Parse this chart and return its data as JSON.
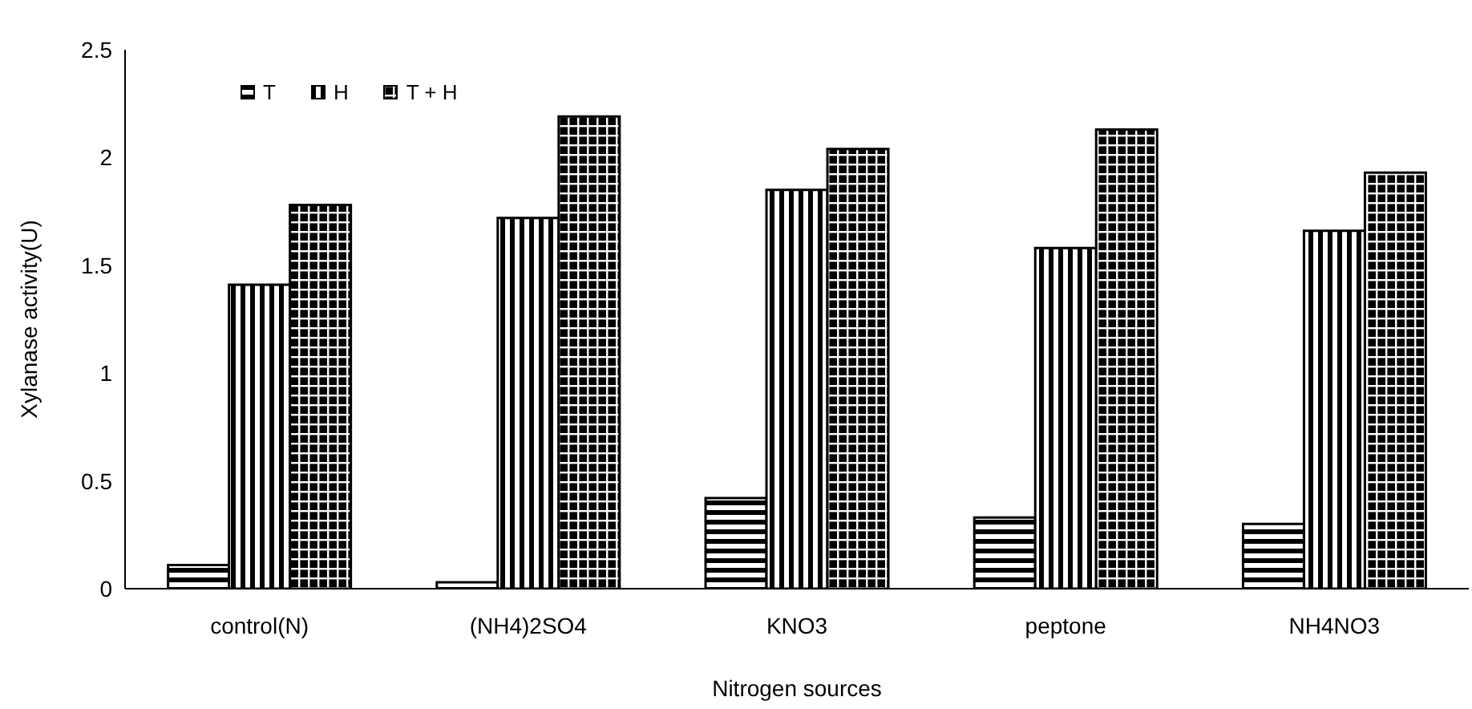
{
  "chart_data": {
    "type": "bar",
    "xlabel": "Nitrogen sources",
    "ylabel": "Xylanase activity(U)",
    "categories": [
      "control(N)",
      "(NH4)2SO4",
      "KNO3",
      "peptone",
      "NH4NO3"
    ],
    "series": [
      {
        "name": "T",
        "color": "#000000",
        "values": [
          0.11,
          0.03,
          0.42,
          0.33,
          0.3
        ]
      },
      {
        "name": "H",
        "color": "#000000",
        "values": [
          1.41,
          1.72,
          1.85,
          1.58,
          1.66
        ]
      },
      {
        "name": "T + H",
        "color": "#000000",
        "values": [
          1.78,
          2.19,
          2.04,
          2.13,
          1.93
        ]
      }
    ],
    "ylim": [
      0,
      2.5
    ],
    "yticks": [
      0,
      0.5,
      1,
      1.5,
      2,
      2.5
    ],
    "grid": false,
    "legend": "top left"
  }
}
